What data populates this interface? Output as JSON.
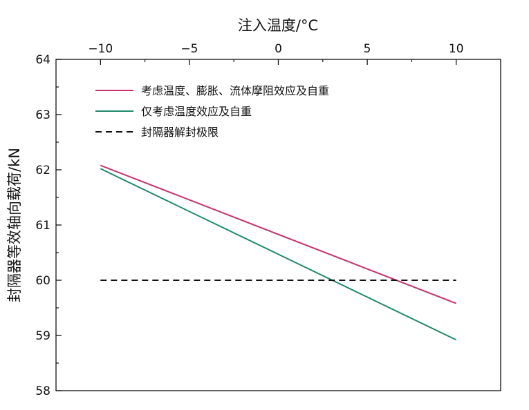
{
  "chart_data": {
    "type": "line",
    "xlabel": "注入温度/°C",
    "ylabel": "封隔器等效轴向载荷/kN",
    "xlim": [
      -12.5,
      12.5
    ],
    "ylim": [
      58,
      64
    ],
    "x_ticks": [
      -10,
      -5,
      0,
      5,
      10
    ],
    "x_tick_labels": [
      "−10",
      "−5",
      "0",
      "5",
      "10"
    ],
    "y_ticks": [
      58,
      59,
      60,
      61,
      62,
      63,
      64
    ],
    "y_tick_labels": [
      "58",
      "59",
      "60",
      "61",
      "62",
      "63",
      "64"
    ],
    "x_axis_position": "top",
    "grid": false,
    "legend_position": "top-left",
    "series": [
      {
        "name": "考虑温度、膨胀、流体摩阻效应及自重",
        "color": "#c8336e",
        "dash": "solid",
        "x": [
          -10,
          10
        ],
        "y": [
          62.08,
          59.58
        ]
      },
      {
        "name": "仅考虑温度效应及自重",
        "color": "#1e8c6a",
        "dash": "solid",
        "x": [
          -10,
          10
        ],
        "y": [
          62.02,
          58.92
        ]
      },
      {
        "name": "封隔器解封极限",
        "color": "#111111",
        "dash": "dashed",
        "x": [
          -10,
          10
        ],
        "y": [
          60,
          60
        ]
      }
    ]
  }
}
